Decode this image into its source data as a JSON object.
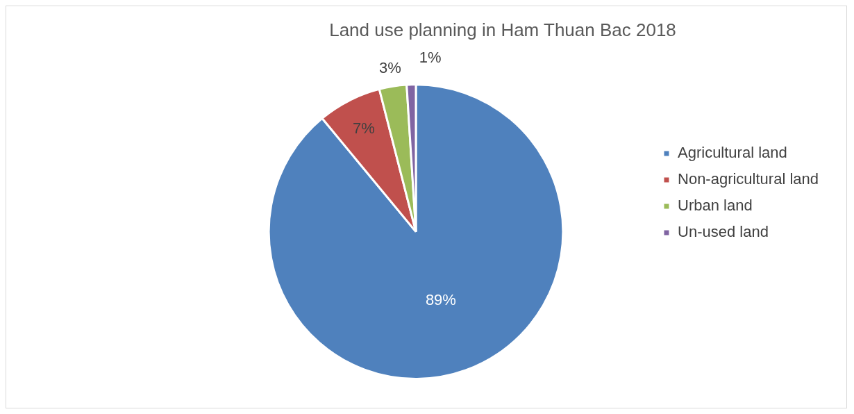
{
  "chart_data": {
    "type": "pie",
    "title": "Land use planning in Ham Thuan Bac 2018",
    "categories": [
      "Agricultural land",
      "Non-agricultural land",
      "Urban land",
      "Un-used land"
    ],
    "values": [
      89,
      7,
      3,
      1
    ],
    "colors": [
      "#4f81bd",
      "#c0504d",
      "#9bbb59",
      "#8064a2"
    ],
    "value_labels": [
      "89%",
      "7%",
      "3%",
      "1%"
    ],
    "legend": "right"
  }
}
